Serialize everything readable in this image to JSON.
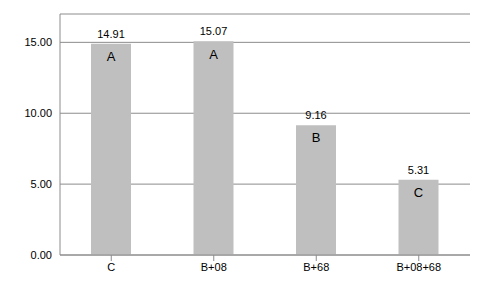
{
  "chart_data": {
    "type": "bar",
    "categories": [
      "C",
      "B+08",
      "B+68",
      "B+08+68"
    ],
    "values": [
      14.91,
      15.07,
      9.16,
      5.31
    ],
    "annotations": [
      "A",
      "A",
      "B",
      "C"
    ],
    "color": "#bfbfbf",
    "ylim": [
      0,
      17
    ],
    "yticks": [
      {
        "value": 0,
        "label": "0.00"
      },
      {
        "value": 5,
        "label": "5.00"
      },
      {
        "value": 10,
        "label": "10.00"
      },
      {
        "value": 15,
        "label": "15.00"
      }
    ],
    "grid": true,
    "data_labels": true
  }
}
